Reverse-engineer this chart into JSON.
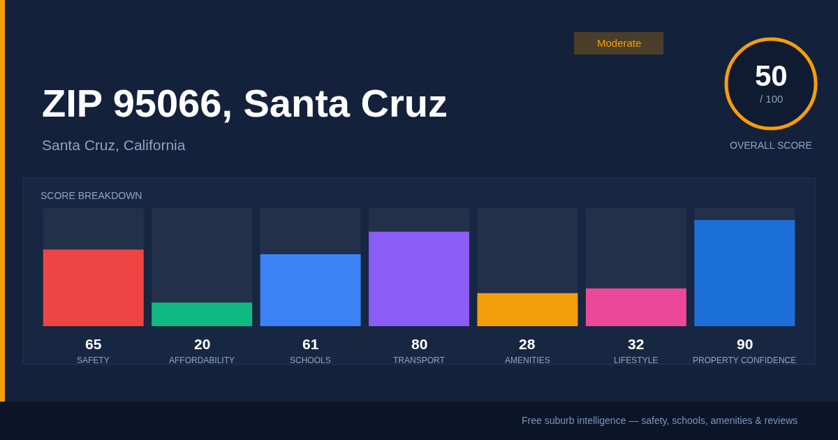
{
  "chart_data": {
    "type": "bar",
    "title": "ZIP 95066, Santa Cruz",
    "subtitle": "Santa Cruz, California",
    "categories": [
      "SAFETY",
      "AFFORDABILITY",
      "SCHOOLS",
      "TRANSPORT",
      "AMENITIES",
      "LIFESTYLE",
      "PROPERTY CONFIDENCE"
    ],
    "values": [
      65,
      20,
      61,
      80,
      28,
      32,
      90
    ],
    "colors": [
      "#ef4444",
      "#10b981",
      "#3b82f6",
      "#8b5cf6",
      "#f59e0b",
      "#ec4899",
      "#1d6fd8"
    ],
    "ylim": [
      0,
      100
    ],
    "data_labels": true,
    "annotations": [
      "Moderate",
      "50",
      "/ 100",
      "OVERALL SCORE",
      "SCORE BREAKDOWN",
      "Free suburb intelligence — safety, schools, amenities & reviews"
    ]
  }
}
